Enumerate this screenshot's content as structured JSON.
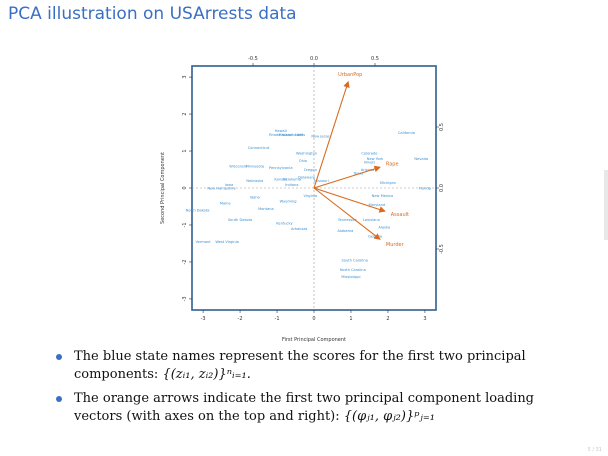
{
  "slide": {
    "title": "PCA illustration on USArrests data",
    "page_number": "5 / 31"
  },
  "colors": {
    "scores": "#3b8fcf",
    "loadings": "#d96a1e",
    "frame": "#2f5f8f",
    "title": "#3b6fc4"
  },
  "bullets": [
    {
      "text": "The blue state names represent the scores for the first two principal components:",
      "math": "{(zᵢ₁, zᵢ₂)}ⁿᵢ₌₁."
    },
    {
      "text": "The orange arrows indicate the first two principal component loading vectors (with axes on the top and right):",
      "math": "{(φⱼ₁, φⱼ₂)}ᵖⱼ₌₁"
    }
  ],
  "chart_data": {
    "type": "scatter",
    "title": "",
    "xlabel": "First Principal Component",
    "ylabel": "Second Principal Component",
    "xlim": [
      -3.3,
      3.3
    ],
    "ylim": [
      -3.3,
      3.3
    ],
    "x_ticks": [
      -3,
      -2,
      -1,
      0,
      1,
      2,
      3
    ],
    "y_ticks": [
      -3,
      -2,
      -1,
      0,
      1,
      2,
      3
    ],
    "top_ticks": [
      -0.5,
      0.0,
      0.5
    ],
    "right_ticks": [
      -0.5,
      0.0,
      0.5
    ],
    "top_tick_labels": [
      "-0.5",
      "0.0",
      "0.5"
    ],
    "right_tick_labels": [
      "-0.5",
      "0.0",
      "0.5"
    ],
    "loading_scale": 3.3,
    "series": [
      {
        "name": "",
        "points": [
          {
            "label": "California",
            "x": 2.5,
            "y": 1.5
          },
          {
            "label": "Nevada",
            "x": 2.9,
            "y": 0.8
          },
          {
            "label": "Florida",
            "x": 3.0,
            "y": 0.0
          },
          {
            "label": "Hawaii",
            "x": -0.9,
            "y": 1.55
          },
          {
            "label": "Rhode Island",
            "x": -0.9,
            "y": 1.45
          },
          {
            "label": "Massachusetts",
            "x": -0.6,
            "y": 1.45
          },
          {
            "label": "Utah",
            "x": -0.4,
            "y": 1.45
          },
          {
            "label": "New Jersey",
            "x": 0.2,
            "y": 1.4
          },
          {
            "label": "Connecticut",
            "x": -1.5,
            "y": 1.1
          },
          {
            "label": "Washington",
            "x": -0.2,
            "y": 0.95
          },
          {
            "label": "Colorado",
            "x": 1.5,
            "y": 0.95
          },
          {
            "label": "New York",
            "x": 1.65,
            "y": 0.8
          },
          {
            "label": "Illinois",
            "x": 1.5,
            "y": 0.7
          },
          {
            "label": "Ohio",
            "x": -0.3,
            "y": 0.75
          },
          {
            "label": "Arizona",
            "x": 1.45,
            "y": 0.5
          },
          {
            "label": "Michigan",
            "x": 2.0,
            "y": 0.15
          },
          {
            "label": "Wisconsin",
            "x": -2.05,
            "y": 0.6
          },
          {
            "label": "Minnesota",
            "x": -1.6,
            "y": 0.6
          },
          {
            "label": "Pennsylvania",
            "x": -0.9,
            "y": 0.55
          },
          {
            "label": "Oregon",
            "x": -0.1,
            "y": 0.5
          },
          {
            "label": "Texas",
            "x": 1.2,
            "y": 0.4
          },
          {
            "label": "Delaware",
            "x": -0.2,
            "y": 0.3
          },
          {
            "label": "Kansas",
            "x": -0.9,
            "y": 0.25
          },
          {
            "label": "Oklahoma",
            "x": -0.6,
            "y": 0.25
          },
          {
            "label": "Missouri",
            "x": 0.2,
            "y": 0.2
          },
          {
            "label": "Nebraska",
            "x": -1.6,
            "y": 0.2
          },
          {
            "label": "Indiana",
            "x": -0.6,
            "y": 0.1
          },
          {
            "label": "Virginia",
            "x": -0.1,
            "y": -0.2
          },
          {
            "label": "Iowa",
            "x": -2.3,
            "y": 0.1
          },
          {
            "label": "New Hampshire",
            "x": -2.5,
            "y": 0.0
          },
          {
            "label": "New Mexico",
            "x": 1.85,
            "y": -0.2
          },
          {
            "label": "Idaho",
            "x": -1.6,
            "y": -0.25
          },
          {
            "label": "Wyoming",
            "x": -0.7,
            "y": -0.35
          },
          {
            "label": "Maryland",
            "x": 1.7,
            "y": -0.45
          },
          {
            "label": "Maine",
            "x": -2.4,
            "y": -0.4
          },
          {
            "label": "Montana",
            "x": -1.3,
            "y": -0.55
          },
          {
            "label": "North Dakota",
            "x": -3.15,
            "y": -0.6
          },
          {
            "label": "South Dakota",
            "x": -2.0,
            "y": -0.85
          },
          {
            "label": "Kentucky",
            "x": -0.8,
            "y": -0.95
          },
          {
            "label": "Tennessee",
            "x": 0.9,
            "y": -0.85
          },
          {
            "label": "Louisiana",
            "x": 1.55,
            "y": -0.85
          },
          {
            "label": "Alaska",
            "x": 1.9,
            "y": -1.05
          },
          {
            "label": "Arkansas",
            "x": -0.4,
            "y": -1.1
          },
          {
            "label": "Alabama",
            "x": 0.85,
            "y": -1.15
          },
          {
            "label": "Georgia",
            "x": 1.65,
            "y": -1.3
          },
          {
            "label": "Vermont",
            "x": -3.0,
            "y": -1.45
          },
          {
            "label": "West Virginia",
            "x": -2.35,
            "y": -1.45
          },
          {
            "label": "South Carolina",
            "x": 1.1,
            "y": -1.95
          },
          {
            "label": "North Carolina",
            "x": 1.05,
            "y": -2.2
          },
          {
            "label": "Mississippi",
            "x": 1.0,
            "y": -2.4
          }
        ]
      }
    ],
    "loadings": [
      {
        "label": "UrbanPop",
        "x": 0.28,
        "y": 0.87
      },
      {
        "label": "Rape",
        "x": 0.54,
        "y": 0.17
      },
      {
        "label": "Assault",
        "x": 0.58,
        "y": -0.19
      },
      {
        "label": "Murder",
        "x": 0.54,
        "y": -0.42
      }
    ]
  }
}
